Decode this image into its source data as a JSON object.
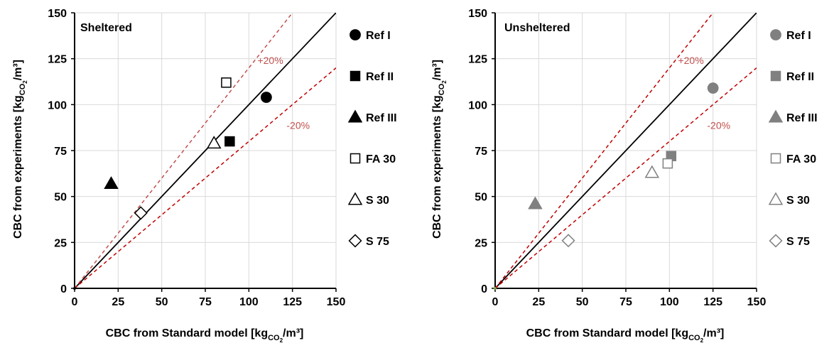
{
  "chart_data": [
    {
      "type": "scatter",
      "title": "Sheltered",
      "xlabel": "CBC from Standard model [kg",
      "xlabel_sub": "CO",
      "xlabel_sub2": "2",
      "xlabel_end": "/m³]",
      "ylabel": "CBC from experiments [kg",
      "ylabel_sub": "CO",
      "ylabel_sub2": "2",
      "ylabel_end": "/m³]",
      "xlim": [
        0,
        150
      ],
      "ylim": [
        0,
        150
      ],
      "xticks": [
        "0",
        "25",
        "50",
        "75",
        "100",
        "125",
        "150"
      ],
      "yticks": [
        "0",
        "25",
        "50",
        "75",
        "100",
        "125",
        "150"
      ],
      "grid": true,
      "legend_position": "right-outside",
      "reference_lines": [
        {
          "label": "",
          "slope": 1.0,
          "style": "solid",
          "color": "#000000"
        },
        {
          "label": "+20%",
          "slope": 1.2,
          "style": "dashed",
          "color": "#c0504d"
        },
        {
          "label": "-20%",
          "slope": 0.8,
          "style": "dashed",
          "color": "#c00000"
        }
      ],
      "series": [
        {
          "name": "Ref I",
          "marker": "circle",
          "filled": true,
          "color": "#000000",
          "x": [
            110
          ],
          "y": [
            104
          ]
        },
        {
          "name": "Ref II",
          "marker": "square",
          "filled": true,
          "color": "#000000",
          "x": [
            89
          ],
          "y": [
            80
          ]
        },
        {
          "name": "Ref III",
          "marker": "triangle",
          "filled": true,
          "color": "#000000",
          "x": [
            21
          ],
          "y": [
            57
          ]
        },
        {
          "name": "FA 30",
          "marker": "square",
          "filled": false,
          "color": "#000000",
          "x": [
            87
          ],
          "y": [
            112
          ]
        },
        {
          "name": "S 30",
          "marker": "triangle",
          "filled": false,
          "color": "#000000",
          "x": [
            80
          ],
          "y": [
            79
          ]
        },
        {
          "name": "S 75",
          "marker": "diamond",
          "filled": false,
          "color": "#000000",
          "x": [
            38
          ],
          "y": [
            41
          ]
        }
      ]
    },
    {
      "type": "scatter",
      "title": "Unsheltered",
      "xlabel": "CBC from Standard model [kg",
      "xlabel_sub": "CO",
      "xlabel_sub2": "2",
      "xlabel_end": "/m³]",
      "ylabel": "CBC from experiments [kg",
      "ylabel_sub": "CO",
      "ylabel_sub2": "2",
      "ylabel_end": "/m³]",
      "xlim": [
        0,
        150
      ],
      "ylim": [
        0,
        150
      ],
      "xticks": [
        "0",
        "25",
        "50",
        "75",
        "100",
        "125",
        "150"
      ],
      "yticks": [
        "0",
        "25",
        "50",
        "75",
        "100",
        "125",
        "150"
      ],
      "grid": true,
      "legend_position": "right-outside",
      "reference_lines": [
        {
          "label": "",
          "slope": 1.0,
          "style": "solid",
          "color": "#000000"
        },
        {
          "label": "+20%",
          "slope": 1.2,
          "style": "dashed",
          "color": "#c00000"
        },
        {
          "label": "-20%",
          "slope": 0.8,
          "style": "dashed",
          "color": "#c00000"
        }
      ],
      "series": [
        {
          "name": "Ref I",
          "marker": "circle",
          "filled": true,
          "color": "#808080",
          "x": [
            125
          ],
          "y": [
            109
          ]
        },
        {
          "name": "Ref II",
          "marker": "square",
          "filled": true,
          "color": "#808080",
          "x": [
            101
          ],
          "y": [
            72
          ]
        },
        {
          "name": "Ref III",
          "marker": "triangle",
          "filled": true,
          "color": "#808080",
          "x": [
            23
          ],
          "y": [
            46
          ]
        },
        {
          "name": "FA 30",
          "marker": "square",
          "filled": false,
          "color": "#808080",
          "x": [
            99
          ],
          "y": [
            68
          ]
        },
        {
          "name": "S 30",
          "marker": "triangle",
          "filled": false,
          "color": "#808080",
          "x": [
            90
          ],
          "y": [
            63
          ]
        },
        {
          "name": "S 75",
          "marker": "diamond",
          "filled": false,
          "color": "#808080",
          "x": [
            42
          ],
          "y": [
            26
          ]
        }
      ]
    }
  ]
}
